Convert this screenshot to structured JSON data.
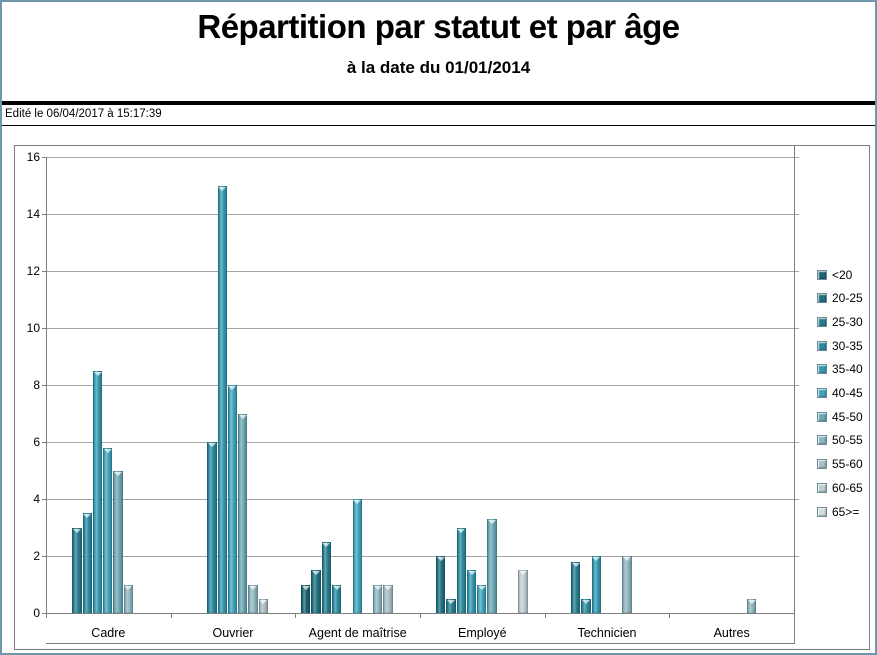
{
  "page": {
    "title": "Répartition par statut et par âge",
    "subtitle": "à la date du 01/01/2014",
    "edited_line": "Edité le 06/04/2017 à 15:17:39"
  },
  "chart_data": {
    "type": "bar",
    "title": "Répartition par statut et par âge",
    "subtitle": "à la date du 01/01/2014",
    "categories": [
      "Cadre",
      "Ouvrier",
      "Agent de maîtrise",
      "Employé",
      "Technicien",
      "Autres"
    ],
    "series": [
      {
        "name": "<20",
        "color": "#1e6474",
        "values": [
          0,
          0,
          1,
          0,
          0,
          0
        ]
      },
      {
        "name": "20-25",
        "color": "#227080",
        "values": [
          0,
          0,
          1.5,
          2,
          0,
          0
        ]
      },
      {
        "name": "25-30",
        "color": "#277d8f",
        "values": [
          3,
          0,
          2.5,
          0.5,
          1.8,
          0
        ]
      },
      {
        "name": "30-35",
        "color": "#2d8ba0",
        "values": [
          3.5,
          6,
          1,
          3,
          0.5,
          0
        ]
      },
      {
        "name": "35-40",
        "color": "#3599b2",
        "values": [
          8.5,
          15,
          0,
          1.5,
          2,
          0
        ]
      },
      {
        "name": "40-45",
        "color": "#41a3bc",
        "values": [
          5.8,
          8,
          4,
          1,
          0,
          0
        ]
      },
      {
        "name": "45-50",
        "color": "#6ca9b5",
        "values": [
          5,
          7,
          0,
          3.3,
          0,
          0
        ]
      },
      {
        "name": "50-55",
        "color": "#8fb6bf",
        "values": [
          1,
          1,
          1,
          0,
          2,
          0.5
        ]
      },
      {
        "name": "55-60",
        "color": "#a7bfc6",
        "values": [
          0,
          0.5,
          1,
          0,
          0,
          0
        ]
      },
      {
        "name": "60-65",
        "color": "#bfcdd1",
        "values": [
          0,
          0,
          0,
          1.5,
          0,
          0
        ]
      },
      {
        "name": "65>=",
        "color": "#d4dcdf",
        "values": [
          0,
          0,
          0,
          0,
          0,
          0
        ]
      }
    ],
    "ylim": [
      0,
      16
    ],
    "ytick_step": 2,
    "grid": true,
    "legend_position": "right"
  },
  "colors": {
    "grid": "#a6a6a6",
    "frame": "#7f7f7f",
    "rule": "#000000"
  }
}
